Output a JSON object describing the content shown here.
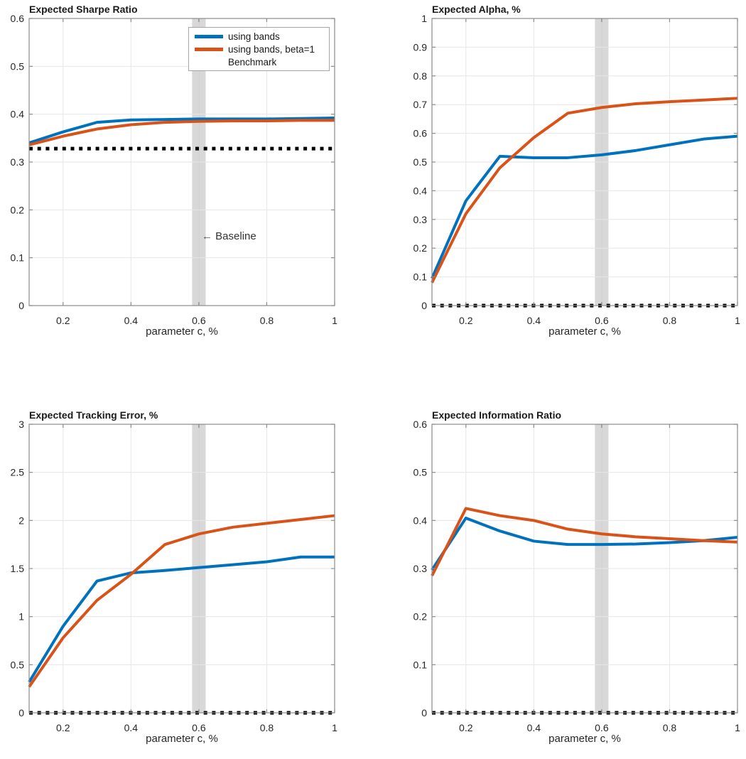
{
  "colors": {
    "blue": "#0072BD",
    "orange": "#D95319",
    "benchmark": "#000000",
    "band": "#D8D8D8",
    "band_center": "#C3C3C3",
    "grid": "#E6E6E6",
    "axis": "#8C8C8C",
    "tick_text": "#262626"
  },
  "legend": {
    "items": [
      "using bands",
      "using bands, beta=1",
      "Benchmark"
    ]
  },
  "annotation": {
    "arrow": "←",
    "text": "Baseline"
  },
  "chart_data": [
    {
      "type": "line",
      "position": "top-left",
      "title": "Expected Sharpe Ratio",
      "xlabel": "parameter c, %",
      "xlim": [
        0.1,
        1
      ],
      "xticks": [
        0.2,
        0.4,
        0.6,
        0.8,
        1
      ],
      "ylim": [
        0,
        0.6
      ],
      "yticks": [
        0,
        0.1,
        0.2,
        0.3,
        0.4,
        0.5,
        0.6
      ],
      "grid": true,
      "band_x": [
        0.58,
        0.62
      ],
      "x": [
        0.1,
        0.2,
        0.3,
        0.4,
        0.5,
        0.6,
        0.7,
        0.8,
        0.9,
        1.0
      ],
      "series": [
        {
          "name": "using bands",
          "color_key": "blue",
          "values": [
            0.34,
            0.363,
            0.383,
            0.388,
            0.389,
            0.39,
            0.39,
            0.39,
            0.391,
            0.392
          ]
        },
        {
          "name": "using bands, beta=1",
          "color_key": "orange",
          "values": [
            0.336,
            0.354,
            0.369,
            0.378,
            0.383,
            0.385,
            0.386,
            0.386,
            0.387,
            0.387
          ]
        }
      ],
      "benchmark": {
        "label": "Benchmark",
        "value": 0.328
      },
      "legend_position": "top-right",
      "annotation": {
        "text": "← Baseline",
        "x": 0.62,
        "y": 0.148
      }
    },
    {
      "type": "line",
      "position": "top-right",
      "title": "Expected Alpha, %",
      "xlabel": "parameter c, %",
      "xlim": [
        0.1,
        1
      ],
      "xticks": [
        0.2,
        0.4,
        0.6,
        0.8,
        1
      ],
      "ylim": [
        0,
        1
      ],
      "yticks": [
        0,
        0.1,
        0.2,
        0.3,
        0.4,
        0.5,
        0.6,
        0.7,
        0.8,
        0.9,
        1
      ],
      "grid": true,
      "band_x": [
        0.58,
        0.62
      ],
      "x": [
        0.1,
        0.2,
        0.3,
        0.4,
        0.5,
        0.6,
        0.7,
        0.8,
        0.9,
        1.0
      ],
      "series": [
        {
          "name": "using bands",
          "color_key": "blue",
          "values": [
            0.095,
            0.365,
            0.52,
            0.515,
            0.515,
            0.525,
            0.54,
            0.56,
            0.58,
            0.59
          ]
        },
        {
          "name": "using bands, beta=1",
          "color_key": "orange",
          "values": [
            0.08,
            0.32,
            0.48,
            0.585,
            0.67,
            0.69,
            0.703,
            0.71,
            0.716,
            0.722
          ]
        }
      ],
      "benchmark": {
        "label": "Benchmark",
        "value": 0
      }
    },
    {
      "type": "line",
      "position": "bottom-left",
      "title": "Expected Tracking Error, %",
      "xlabel": "parameter c, %",
      "xlim": [
        0.1,
        1
      ],
      "xticks": [
        0.2,
        0.4,
        0.6,
        0.8,
        1
      ],
      "ylim": [
        0,
        3
      ],
      "yticks": [
        0,
        0.5,
        1,
        1.5,
        2,
        2.5,
        3
      ],
      "grid": true,
      "band_x": [
        0.58,
        0.62
      ],
      "x": [
        0.1,
        0.2,
        0.3,
        0.4,
        0.5,
        0.6,
        0.7,
        0.8,
        0.9,
        1.0
      ],
      "series": [
        {
          "name": "using bands",
          "color_key": "blue",
          "values": [
            0.32,
            0.9,
            1.37,
            1.455,
            1.48,
            1.51,
            1.54,
            1.57,
            1.62,
            1.62
          ]
        },
        {
          "name": "using bands, beta=1",
          "color_key": "orange",
          "values": [
            0.27,
            0.78,
            1.17,
            1.44,
            1.75,
            1.86,
            1.93,
            1.97,
            2.01,
            2.05
          ]
        }
      ],
      "benchmark": {
        "label": "Benchmark",
        "value": 0
      }
    },
    {
      "type": "line",
      "position": "bottom-right",
      "title": "Expected Information Ratio",
      "xlabel": "parameter c, %",
      "xlim": [
        0.1,
        1
      ],
      "xticks": [
        0.2,
        0.4,
        0.6,
        0.8,
        1
      ],
      "ylim": [
        0,
        0.6
      ],
      "yticks": [
        0,
        0.1,
        0.2,
        0.3,
        0.4,
        0.5,
        0.6
      ],
      "grid": true,
      "band_x": [
        0.58,
        0.62
      ],
      "x": [
        0.1,
        0.2,
        0.3,
        0.4,
        0.5,
        0.6,
        0.7,
        0.8,
        0.9,
        1.0
      ],
      "series": [
        {
          "name": "using bands",
          "color_key": "blue",
          "values": [
            0.297,
            0.405,
            0.378,
            0.357,
            0.35,
            0.35,
            0.351,
            0.354,
            0.358,
            0.365
          ]
        },
        {
          "name": "using bands, beta=1",
          "color_key": "orange",
          "values": [
            0.285,
            0.425,
            0.41,
            0.4,
            0.382,
            0.372,
            0.366,
            0.362,
            0.358,
            0.355
          ]
        }
      ],
      "benchmark": {
        "label": "Benchmark",
        "value": 0
      }
    }
  ]
}
